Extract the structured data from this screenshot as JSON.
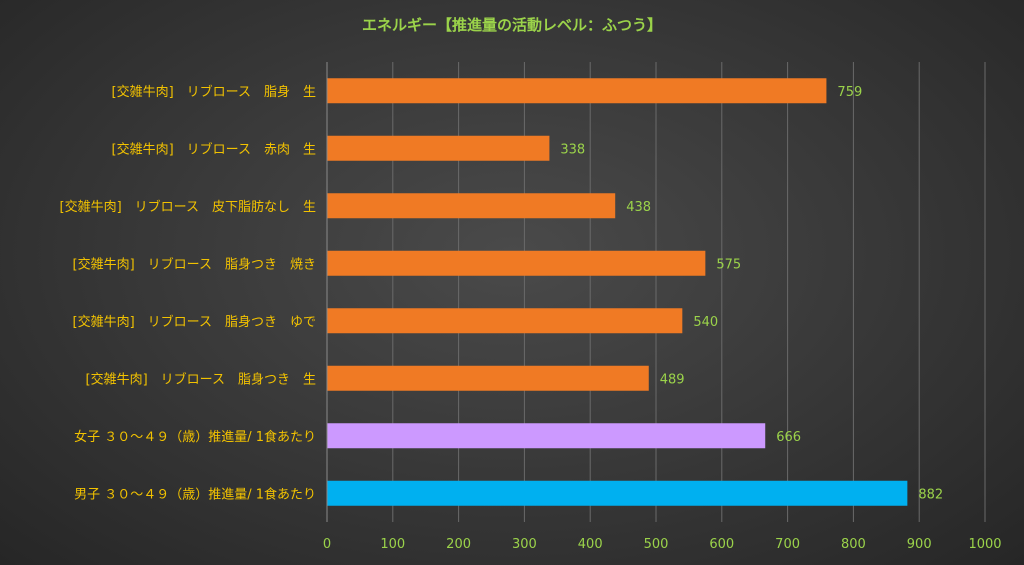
{
  "chart_data": {
    "type": "bar",
    "orientation": "horizontal",
    "title": "エネルギー【推進量の活動レベル：ふつう】",
    "categories": [
      "[交雑牛肉]　リブロース　脂身　生",
      "[交雑牛肉]　リブロース　赤肉　生",
      "[交雑牛肉]　リブロース　皮下脂肪なし　生",
      "[交雑牛肉]　リブロース　脂身つき　焼き",
      "[交雑牛肉]　リブロース　脂身つき　ゆで",
      "[交雑牛肉]　リブロース　脂身つき　生",
      "女子 ３０～４９（歳）推進量/ 1食あたり",
      "男子 ３０～４９（歳）推進量/ 1食あたり"
    ],
    "values": [
      759,
      338,
      438,
      575,
      540,
      489,
      666,
      882
    ],
    "bar_colors": [
      "#f07a24",
      "#f07a24",
      "#f07a24",
      "#f07a24",
      "#f07a24",
      "#f07a24",
      "#cc99ff",
      "#00b0f0"
    ],
    "xlim": [
      0,
      1000
    ],
    "x_ticks": [
      "0",
      "100",
      "200",
      "300",
      "400",
      "500",
      "600",
      "700",
      "800",
      "900",
      "1000"
    ],
    "grid": true,
    "legend": "none"
  }
}
